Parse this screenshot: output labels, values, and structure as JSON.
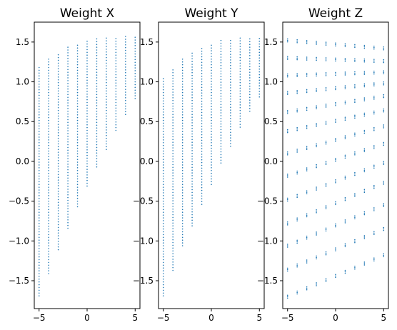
{
  "chart_data": [
    {
      "type": "scatter",
      "title": "Weight X",
      "xlabel": "",
      "ylabel": "",
      "xlim": [
        -5.5,
        5.5
      ],
      "ylim": [
        -1.85,
        1.75
      ],
      "xticks": [
        -5,
        0,
        5
      ],
      "xtick_labels": [
        "−5",
        "0",
        "5"
      ],
      "yticks": [
        -1.5,
        -1.0,
        -0.5,
        0.0,
        0.5,
        1.0,
        1.5
      ],
      "ytick_labels": [
        "−1.5",
        "−1.0",
        "−0.5",
        "0.0",
        "0.5",
        "1.0",
        "1.5"
      ],
      "marker_color": "#1f77b4",
      "columns": [
        {
          "x": -5,
          "ymin": -1.69,
          "ymax": 1.18
        },
        {
          "x": -4,
          "ymin": -1.41,
          "ymax": 1.29
        },
        {
          "x": -3,
          "ymin": -1.11,
          "ymax": 1.37
        },
        {
          "x": -2,
          "ymin": -0.84,
          "ymax": 1.44
        },
        {
          "x": -1,
          "ymin": -0.57,
          "ymax": 1.49
        },
        {
          "x": 0,
          "ymin": -0.31,
          "ymax": 1.52
        },
        {
          "x": 1,
          "ymin": -0.07,
          "ymax": 1.54
        },
        {
          "x": 2,
          "ymin": 0.15,
          "ymax": 1.56
        },
        {
          "x": 3,
          "ymin": 0.39,
          "ymax": 1.57
        },
        {
          "x": 4,
          "ymin": 0.59,
          "ymax": 1.57
        },
        {
          "x": 5,
          "ymin": 0.79,
          "ymax": 1.57
        }
      ]
    },
    {
      "type": "scatter",
      "title": "Weight Y",
      "xlabel": "",
      "ylabel": "",
      "xlim": [
        -5.5,
        5.5
      ],
      "ylim": [
        -1.85,
        1.75
      ],
      "xticks": [
        -5,
        0,
        5
      ],
      "xtick_labels": [
        "−5",
        "0",
        "5"
      ],
      "yticks": [
        -1.5,
        -1.0,
        -0.5,
        0.0,
        0.5,
        1.0,
        1.5
      ],
      "ytick_labels": [
        "−1.5",
        "−1.0",
        "−0.5",
        "0.0",
        "0.5",
        "1.0",
        "1.5"
      ],
      "marker_color": "#1f77b4",
      "columns": [
        {
          "x": -5,
          "ymin": -1.69,
          "ymax": 1.05
        },
        {
          "x": -4,
          "ymin": -1.37,
          "ymax": 1.18
        },
        {
          "x": -3,
          "ymin": -1.06,
          "ymax": 1.29
        },
        {
          "x": -2,
          "ymin": -0.81,
          "ymax": 1.37
        },
        {
          "x": -1,
          "ymin": -0.54,
          "ymax": 1.45
        },
        {
          "x": 0,
          "ymin": -0.29,
          "ymax": 1.49
        },
        {
          "x": 1,
          "ymin": -0.02,
          "ymax": 1.52
        },
        {
          "x": 2,
          "ymin": 0.19,
          "ymax": 1.54
        },
        {
          "x": 3,
          "ymin": 0.43,
          "ymax": 1.56
        },
        {
          "x": 4,
          "ymin": 0.63,
          "ymax": 1.57
        },
        {
          "x": 5,
          "ymin": 0.81,
          "ymax": 1.57
        }
      ]
    },
    {
      "type": "scatter",
      "title": "Weight Z",
      "xlabel": "",
      "ylabel": "",
      "xlim": [
        -5.5,
        5.5
      ],
      "ylim": [
        -1.85,
        1.75
      ],
      "xticks": [
        -5,
        0,
        5
      ],
      "xtick_labels": [
        "−5",
        "0",
        "5"
      ],
      "yticks": [
        -1.5,
        -1.0,
        -0.5,
        0.0,
        0.5,
        1.0,
        1.5
      ],
      "ytick_labels": [
        "−1.5",
        "−1.0",
        "−0.5",
        "0.0",
        "0.5",
        "1.0",
        "1.5"
      ],
      "marker_color": "#1f77b4",
      "bands": [
        {
          "y_at_x_min": -1.7,
          "y_at_x_max": -1.18
        },
        {
          "y_at_x_min": -1.36,
          "y_at_x_max": -0.85
        },
        {
          "y_at_x_min": -1.06,
          "y_at_x_max": -0.55
        },
        {
          "y_at_x_min": -0.78,
          "y_at_x_max": -0.27
        },
        {
          "y_at_x_min": -0.48,
          "y_at_x_max": -0.02
        },
        {
          "y_at_x_min": -0.18,
          "y_at_x_max": 0.22
        },
        {
          "y_at_x_min": 0.1,
          "y_at_x_max": 0.44
        },
        {
          "y_at_x_min": 0.38,
          "y_at_x_max": 0.64
        },
        {
          "y_at_x_min": 0.62,
          "y_at_x_max": 0.82
        },
        {
          "y_at_x_min": 0.86,
          "y_at_x_max": 0.98
        },
        {
          "y_at_x_min": 1.08,
          "y_at_x_max": 1.12
        },
        {
          "y_at_x_min": 1.3,
          "y_at_x_max": 1.26
        },
        {
          "y_at_x_min": 1.52,
          "y_at_x_max": 1.42
        }
      ]
    }
  ]
}
